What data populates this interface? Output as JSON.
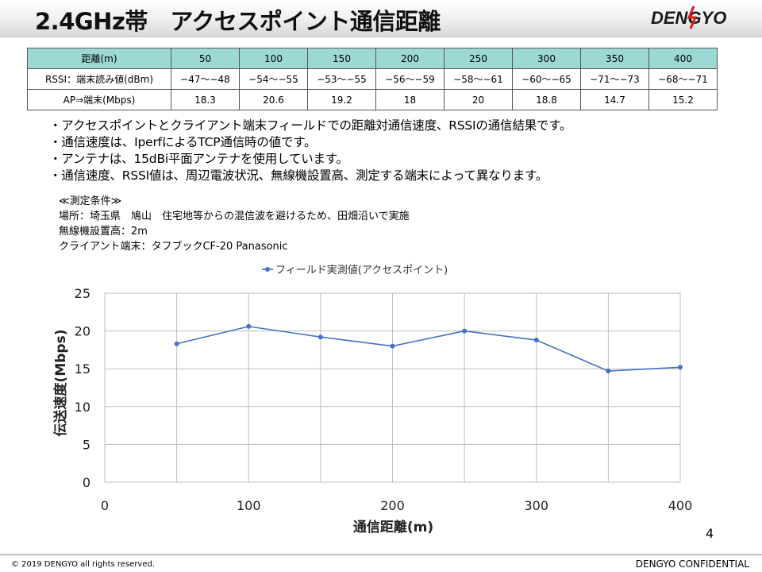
{
  "title": "2.4GHz帯　アクセスポイント通信距離",
  "logo_text": "DENGYO",
  "table": {
    "row_labels": [
      "距離(m)",
      "RSSI：端末読み値(dBm)",
      "AP⇒端末(Mbps)"
    ],
    "distances": [
      "50",
      "100",
      "150",
      "200",
      "250",
      "300",
      "350",
      "400"
    ],
    "rssi": [
      "−47〜−48",
      "−54〜−55",
      "−53〜−55",
      "−56〜−59",
      "−58〜−61",
      "−60〜−65",
      "−71〜−73",
      "−68〜−71"
    ],
    "throughput": [
      "18.3",
      "20.6",
      "19.2",
      "18",
      "20",
      "18.8",
      "14.7",
      "15.2"
    ]
  },
  "notes": [
    "・アクセスポイントとクライアント端末フィールドでの距離対通信速度、RSSIの通信結果です。",
    "・通信速度は、IperfによるTCP通信時の値です。",
    "・アンテナは、15dBi平面アンテナを使用しています。",
    "・通信速度、RSSI値は、周辺電波状況、無線機設置高、測定する端末によって異なります。"
  ],
  "conditions": {
    "header": "≪測定条件≫",
    "location": "場所：埼玉県　鳩山　住宅地等からの混信波を避けるため、田畑沿いで実施",
    "height": "無線機設置高：2m",
    "client": "クライアント端末：タフブックCF-20 Panasonic"
  },
  "chart_data": {
    "type": "scatter",
    "title": "",
    "series": [
      {
        "name": "フィールド実測値(アクセスポイント)",
        "x": [
          50,
          100,
          150,
          200,
          250,
          300,
          350,
          400
        ],
        "y": [
          18.3,
          20.6,
          19.2,
          18,
          20,
          18.8,
          14.7,
          15.2
        ]
      }
    ],
    "xlabel": "通信距離(m)",
    "ylabel": "伝送速度(Mbps)",
    "xlim": [
      0,
      400
    ],
    "ylim": [
      0,
      25
    ],
    "xticks": [
      0,
      100,
      200,
      300,
      400
    ],
    "yticks": [
      0,
      5,
      10,
      15,
      20,
      25
    ],
    "x_minor_step": 50,
    "grid": true,
    "legend_position": "top-center",
    "line_color": "#4472c4"
  },
  "page_number": "4",
  "footer": {
    "copyright": "© 2019 DENGYO  all rights reserved.",
    "confidential": "DENGYO CONFIDENTIAL"
  }
}
